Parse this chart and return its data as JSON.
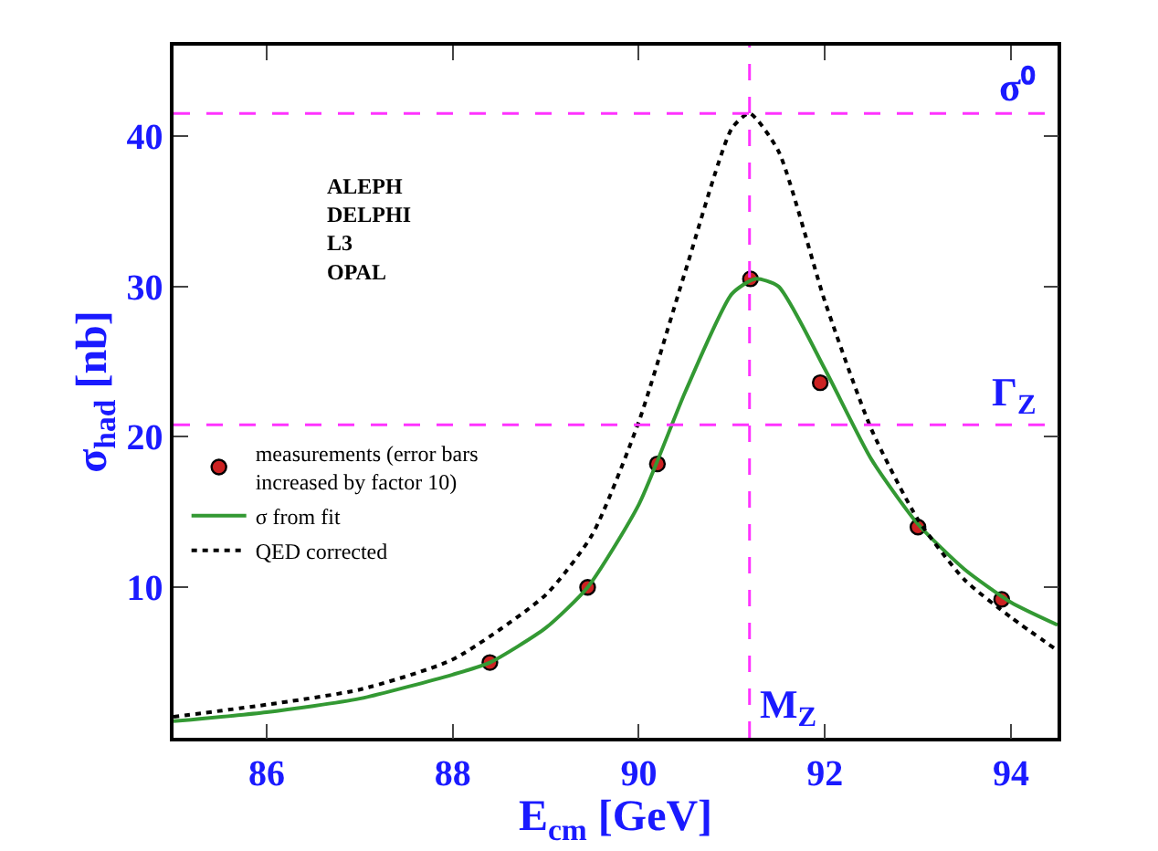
{
  "chart_data": {
    "type": "scatter",
    "xlabel": "E$_{cm}$ [GeV]",
    "ylabel": "σ$_{had}$ [nb]",
    "xlim": [
      85,
      94.5
    ],
    "ylim": [
      0,
      46
    ],
    "xticks": [
      86,
      88,
      90,
      92,
      94
    ],
    "yticks": [
      10,
      20,
      30,
      40
    ],
    "legend": "left",
    "annotations": [
      "ALEPH\nDELPHI\nL3\nOPAL"
    ],
    "ref_lines": [
      {
        "axis": "x",
        "value": 91.19,
        "label": "M$_{Z}$",
        "color": "#ff33ff",
        "line_style": "dashed"
      },
      {
        "axis": "y",
        "value": 41.5,
        "label": "σ⁰",
        "color": "#ff33ff",
        "line_style": "dashed"
      },
      {
        "axis": "y",
        "value": 20.8,
        "label": "Γ$_{Z}$",
        "color": "#ff33ff",
        "line_style": "dashed"
      }
    ],
    "series": [
      {
        "name": "σ from fit",
        "type": "line",
        "color": "#339933",
        "line_style": "solid",
        "marker": "none",
        "x": [
          85,
          86,
          87,
          88,
          88.4,
          89,
          89.45,
          90,
          90.5,
          91,
          91.25,
          91.5,
          92,
          92.5,
          93,
          93.5,
          94,
          94.5
        ],
        "values": [
          1.1,
          1.7,
          2.6,
          4.2,
          5.0,
          7.3,
          10,
          15.5,
          23,
          29.5,
          30.5,
          30,
          24.5,
          18.5,
          14.2,
          11.2,
          9.0,
          7.5
        ]
      },
      {
        "name": "QED corrected",
        "type": "line",
        "color": "#000000",
        "line_style": "dotted",
        "marker": "none",
        "x": [
          85,
          86,
          87,
          88,
          89,
          89.5,
          90,
          90.5,
          91,
          91.19,
          91.5,
          92,
          92.5,
          93,
          93.5,
          94,
          94.5
        ],
        "values": [
          1.4,
          2.2,
          3.2,
          5.2,
          9.5,
          13.5,
          21,
          31,
          40.5,
          41.5,
          39,
          29,
          20.5,
          14.5,
          10.5,
          8,
          5.8
        ]
      },
      {
        "name": "measurements (error bars\nincreased by factor 10)",
        "color": "#cc2222",
        "marker": "circle",
        "x": [
          88.4,
          89.45,
          90.2,
          91.2,
          91.95,
          93.0,
          93.9
        ],
        "values": [
          5.0,
          10.0,
          18.2,
          30.5,
          23.6,
          14.0,
          9.2
        ]
      }
    ]
  }
}
